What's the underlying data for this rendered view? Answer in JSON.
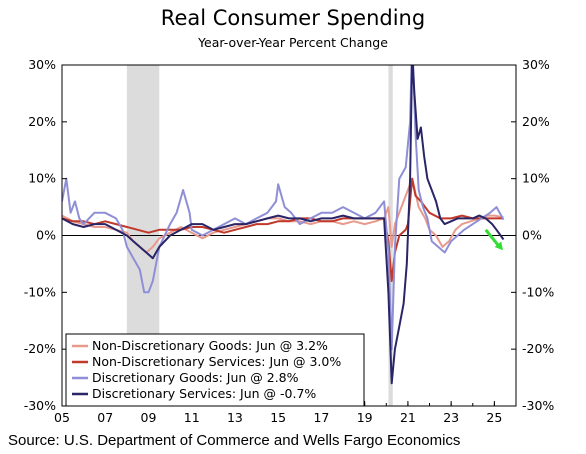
{
  "chart_data": {
    "type": "line",
    "title": "Real Consumer Spending",
    "subtitle": "Year-over-Year Percent Change",
    "source": "Source: U.S. Department of Commerce and Wells Fargo Economics",
    "xlabel": "",
    "ylabel": "",
    "xlim": [
      2005,
      2026
    ],
    "ylim": [
      -30,
      30
    ],
    "x_ticks": [
      "05",
      "07",
      "09",
      "11",
      "13",
      "15",
      "17",
      "19",
      "21",
      "23",
      "25"
    ],
    "x_tick_years": [
      2005,
      2007,
      2009,
      2011,
      2013,
      2015,
      2017,
      2019,
      2021,
      2023,
      2025
    ],
    "y_ticks": [
      -30,
      -20,
      -10,
      0,
      10,
      20,
      30
    ],
    "y_tick_labels": [
      "-30%",
      "-20%",
      "-10%",
      "0%",
      "10%",
      "20%",
      "30%"
    ],
    "legend_position": "bottom-left",
    "recessions": [
      [
        2008.0,
        2009.5
      ],
      [
        2020.1,
        2020.3
      ]
    ],
    "series": [
      {
        "name": "Non-Discretionary Goods: Jun @ 3.2%",
        "color": "#e89a8c",
        "points": [
          [
            2005,
            3.5
          ],
          [
            2005.5,
            2.5
          ],
          [
            2006,
            2
          ],
          [
            2006.5,
            1.5
          ],
          [
            2007,
            1.5
          ],
          [
            2007.5,
            1
          ],
          [
            2008,
            0.5
          ],
          [
            2008.3,
            -1
          ],
          [
            2008.6,
            -2
          ],
          [
            2008.9,
            -3
          ],
          [
            2009.2,
            -2
          ],
          [
            2009.5,
            -0.5
          ],
          [
            2010,
            0.5
          ],
          [
            2010.5,
            1.5
          ],
          [
            2011,
            0.5
          ],
          [
            2011.5,
            -0.5
          ],
          [
            2012,
            0.5
          ],
          [
            2012.5,
            1
          ],
          [
            2013,
            1.5
          ],
          [
            2013.5,
            2
          ],
          [
            2014,
            2.5
          ],
          [
            2014.5,
            3
          ],
          [
            2015,
            3
          ],
          [
            2015.5,
            2.5
          ],
          [
            2016,
            2.5
          ],
          [
            2016.5,
            2
          ],
          [
            2017,
            2.5
          ],
          [
            2017.5,
            2.5
          ],
          [
            2018,
            2
          ],
          [
            2018.5,
            2.5
          ],
          [
            2019,
            2
          ],
          [
            2019.5,
            2.5
          ],
          [
            2019.9,
            3
          ],
          [
            2020.1,
            5
          ],
          [
            2020.25,
            -2
          ],
          [
            2020.4,
            2
          ],
          [
            2020.7,
            5
          ],
          [
            2021,
            8
          ],
          [
            2021.2,
            10
          ],
          [
            2021.5,
            5
          ],
          [
            2021.8,
            3
          ],
          [
            2022,
            1
          ],
          [
            2022.3,
            0
          ],
          [
            2022.6,
            -2
          ],
          [
            2022.9,
            -1
          ],
          [
            2023.2,
            1
          ],
          [
            2023.5,
            2
          ],
          [
            2023.9,
            2.5
          ],
          [
            2024.3,
            3
          ],
          [
            2024.7,
            3.5
          ],
          [
            2025,
            3.5
          ],
          [
            2025.42,
            3.2
          ]
        ]
      },
      {
        "name": "Non-Discretionary Services: Jun @ 3.0%",
        "color": "#c0392b",
        "points": [
          [
            2005,
            3
          ],
          [
            2005.5,
            2.5
          ],
          [
            2006,
            2.5
          ],
          [
            2006.5,
            2
          ],
          [
            2007,
            2.5
          ],
          [
            2007.5,
            2
          ],
          [
            2008,
            1.5
          ],
          [
            2008.5,
            1
          ],
          [
            2009,
            0.5
          ],
          [
            2009.5,
            1
          ],
          [
            2010,
            1
          ],
          [
            2010.5,
            1
          ],
          [
            2011,
            1.5
          ],
          [
            2011.5,
            1.5
          ],
          [
            2012,
            1
          ],
          [
            2012.5,
            0.5
          ],
          [
            2013,
            1
          ],
          [
            2013.5,
            1.5
          ],
          [
            2014,
            2
          ],
          [
            2014.5,
            2
          ],
          [
            2015,
            2.5
          ],
          [
            2015.5,
            2.5
          ],
          [
            2016,
            3
          ],
          [
            2016.5,
            3
          ],
          [
            2017,
            2.5
          ],
          [
            2017.5,
            2.5
          ],
          [
            2018,
            3
          ],
          [
            2018.5,
            3
          ],
          [
            2019,
            3
          ],
          [
            2019.5,
            3
          ],
          [
            2019.9,
            3
          ],
          [
            2020.1,
            -1
          ],
          [
            2020.25,
            -8
          ],
          [
            2020.4,
            -3
          ],
          [
            2020.6,
            0
          ],
          [
            2020.9,
            1
          ],
          [
            2021,
            2
          ],
          [
            2021.2,
            10
          ],
          [
            2021.35,
            7
          ],
          [
            2021.6,
            6
          ],
          [
            2021.8,
            5
          ],
          [
            2022,
            4
          ],
          [
            2022.5,
            3
          ],
          [
            2023,
            3
          ],
          [
            2023.5,
            3.5
          ],
          [
            2024,
            3
          ],
          [
            2024.5,
            3
          ],
          [
            2025,
            3
          ],
          [
            2025.42,
            3
          ]
        ]
      },
      {
        "name": "Discretionary Goods: Jun @ 2.8%",
        "color": "#8e8fd6",
        "points": [
          [
            2005,
            6
          ],
          [
            2005.2,
            10
          ],
          [
            2005.4,
            4
          ],
          [
            2005.6,
            6
          ],
          [
            2005.8,
            3
          ],
          [
            2006,
            2
          ],
          [
            2006.5,
            4
          ],
          [
            2007,
            4
          ],
          [
            2007.5,
            3
          ],
          [
            2007.8,
            1
          ],
          [
            2008,
            -2
          ],
          [
            2008.3,
            -4
          ],
          [
            2008.6,
            -6
          ],
          [
            2008.8,
            -10
          ],
          [
            2009,
            -10
          ],
          [
            2009.2,
            -8
          ],
          [
            2009.5,
            -2
          ],
          [
            2010,
            2
          ],
          [
            2010.3,
            4
          ],
          [
            2010.6,
            8
          ],
          [
            2010.9,
            4
          ],
          [
            2011,
            1
          ],
          [
            2011.5,
            0
          ],
          [
            2012,
            1
          ],
          [
            2012.5,
            2
          ],
          [
            2013,
            3
          ],
          [
            2013.5,
            2
          ],
          [
            2014,
            3
          ],
          [
            2014.5,
            4
          ],
          [
            2014.9,
            6
          ],
          [
            2015,
            9
          ],
          [
            2015.3,
            5
          ],
          [
            2015.6,
            4
          ],
          [
            2016,
            2
          ],
          [
            2016.5,
            3
          ],
          [
            2017,
            4
          ],
          [
            2017.5,
            4
          ],
          [
            2018,
            5
          ],
          [
            2018.5,
            4
          ],
          [
            2019,
            3
          ],
          [
            2019.5,
            4
          ],
          [
            2019.9,
            6
          ],
          [
            2020.1,
            -3
          ],
          [
            2020.25,
            -20
          ],
          [
            2020.4,
            -2
          ],
          [
            2020.6,
            10
          ],
          [
            2020.9,
            12
          ],
          [
            2021.1,
            20
          ],
          [
            2021.2,
            35
          ],
          [
            2021.35,
            18
          ],
          [
            2021.5,
            8
          ],
          [
            2021.7,
            5
          ],
          [
            2021.9,
            3
          ],
          [
            2022.1,
            -1
          ],
          [
            2022.4,
            -2
          ],
          [
            2022.7,
            -3
          ],
          [
            2023,
            -1
          ],
          [
            2023.3,
            0
          ],
          [
            2023.6,
            1
          ],
          [
            2024,
            2
          ],
          [
            2024.4,
            3
          ],
          [
            2024.8,
            4
          ],
          [
            2025.1,
            5
          ],
          [
            2025.42,
            2.8
          ]
        ]
      },
      {
        "name": "Discretionary Services: Jun @ -0.7%",
        "color": "#2a2566",
        "points": [
          [
            2005,
            3
          ],
          [
            2005.5,
            2
          ],
          [
            2006,
            1.5
          ],
          [
            2006.5,
            2
          ],
          [
            2007,
            2
          ],
          [
            2007.5,
            1
          ],
          [
            2008,
            0
          ],
          [
            2008.3,
            -1
          ],
          [
            2008.6,
            -2
          ],
          [
            2008.9,
            -3
          ],
          [
            2009.2,
            -4
          ],
          [
            2009.5,
            -2
          ],
          [
            2010,
            0
          ],
          [
            2010.5,
            1
          ],
          [
            2011,
            2
          ],
          [
            2011.5,
            2
          ],
          [
            2012,
            1
          ],
          [
            2012.5,
            1.5
          ],
          [
            2013,
            2
          ],
          [
            2013.5,
            2
          ],
          [
            2014,
            2.5
          ],
          [
            2014.5,
            3
          ],
          [
            2015,
            3.5
          ],
          [
            2015.5,
            3
          ],
          [
            2016,
            3
          ],
          [
            2016.5,
            2.5
          ],
          [
            2017,
            3
          ],
          [
            2017.5,
            3
          ],
          [
            2018,
            3.5
          ],
          [
            2018.5,
            3
          ],
          [
            2019,
            3
          ],
          [
            2019.5,
            3
          ],
          [
            2019.9,
            3
          ],
          [
            2020.1,
            -10
          ],
          [
            2020.25,
            -26
          ],
          [
            2020.4,
            -20
          ],
          [
            2020.6,
            -16
          ],
          [
            2020.8,
            -12
          ],
          [
            2020.95,
            -5
          ],
          [
            2021.1,
            10
          ],
          [
            2021.2,
            32
          ],
          [
            2021.3,
            25
          ],
          [
            2021.45,
            17
          ],
          [
            2021.6,
            19
          ],
          [
            2021.75,
            14
          ],
          [
            2021.9,
            10
          ],
          [
            2022.1,
            8
          ],
          [
            2022.3,
            6
          ],
          [
            2022.5,
            3
          ],
          [
            2022.7,
            2
          ],
          [
            2023,
            2.5
          ],
          [
            2023.3,
            3
          ],
          [
            2023.6,
            3
          ],
          [
            2024,
            3
          ],
          [
            2024.3,
            3.5
          ],
          [
            2024.6,
            3
          ],
          [
            2024.9,
            2
          ],
          [
            2025.1,
            1
          ],
          [
            2025.42,
            -0.7
          ]
        ]
      }
    ],
    "annotation": {
      "type": "arrow",
      "color": "#33dd33",
      "from": [
        2024.6,
        1
      ],
      "to": [
        2025.4,
        -2.6
      ]
    }
  }
}
